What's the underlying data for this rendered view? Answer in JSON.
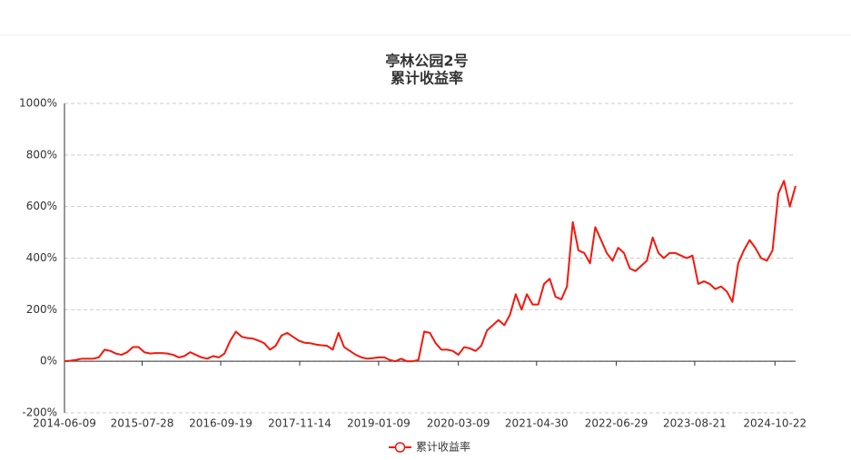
{
  "chart_data": {
    "type": "line",
    "title": "亭林公园2号",
    "subtitle": "累计收益率",
    "x": [
      "2014-06-09",
      "2014-07-09",
      "2014-08-09",
      "2014-09-09",
      "2014-10-09",
      "2014-11-09",
      "2014-12-09",
      "2015-01-09",
      "2015-02-09",
      "2015-03-09",
      "2015-04-09",
      "2015-05-09",
      "2015-06-09",
      "2015-07-09",
      "2015-08-09",
      "2015-09-09",
      "2015-10-09",
      "2015-11-09",
      "2015-12-09",
      "2016-01-09",
      "2016-02-09",
      "2016-03-09",
      "2016-04-09",
      "2016-05-09",
      "2016-06-09",
      "2016-07-09",
      "2016-08-09",
      "2016-09-09",
      "2016-10-09",
      "2016-11-09",
      "2016-12-09",
      "2017-01-09",
      "2017-02-09",
      "2017-03-09",
      "2017-04-09",
      "2017-05-09",
      "2017-06-09",
      "2017-07-09",
      "2017-08-09",
      "2017-09-09",
      "2017-10-09",
      "2017-11-09",
      "2017-12-09",
      "2018-01-09",
      "2018-02-09",
      "2018-03-09",
      "2018-04-09",
      "2018-05-09",
      "2018-06-09",
      "2018-07-09",
      "2018-08-09",
      "2018-09-09",
      "2018-10-09",
      "2018-11-09",
      "2018-12-09",
      "2019-01-09",
      "2019-02-09",
      "2019-03-09",
      "2019-04-09",
      "2019-05-09",
      "2019-06-09",
      "2019-07-09",
      "2019-08-09",
      "2019-09-09",
      "2019-10-09",
      "2019-11-09",
      "2019-12-09",
      "2020-01-09",
      "2020-02-09",
      "2020-03-09",
      "2020-04-09",
      "2020-05-09",
      "2020-06-09",
      "2020-07-09",
      "2020-08-09",
      "2020-09-09",
      "2020-10-09",
      "2020-11-09",
      "2020-12-09",
      "2021-01-09",
      "2021-02-09",
      "2021-03-09",
      "2021-04-09",
      "2021-05-09",
      "2021-06-09",
      "2021-07-09",
      "2021-08-09",
      "2021-09-09",
      "2021-10-09",
      "2021-11-09",
      "2021-12-09",
      "2022-01-09",
      "2022-02-09",
      "2022-03-09",
      "2022-04-09",
      "2022-05-09",
      "2022-06-09",
      "2022-07-09",
      "2022-08-09",
      "2022-09-09",
      "2022-10-09",
      "2022-11-09",
      "2022-12-09",
      "2023-01-09",
      "2023-02-09",
      "2023-03-09",
      "2023-04-09",
      "2023-05-09",
      "2023-06-09",
      "2023-07-09",
      "2023-08-09",
      "2023-09-09",
      "2023-10-09",
      "2023-11-09",
      "2023-12-09",
      "2024-01-09",
      "2024-02-09",
      "2024-03-09",
      "2024-04-09",
      "2024-05-09",
      "2024-06-09",
      "2024-07-09",
      "2024-08-09",
      "2024-09-09",
      "2024-10-09",
      "2024-11-09",
      "2024-12-09",
      "2025-01-09",
      "2025-02-09"
    ],
    "series": [
      {
        "name": "累计收益率",
        "color": "#f5170b",
        "values": [
          0,
          2,
          5,
          10,
          10,
          10,
          15,
          45,
          40,
          30,
          25,
          35,
          55,
          55,
          35,
          30,
          32,
          32,
          30,
          25,
          15,
          20,
          35,
          25,
          15,
          10,
          20,
          15,
          30,
          80,
          115,
          95,
          90,
          88,
          80,
          70,
          45,
          60,
          100,
          110,
          95,
          80,
          72,
          70,
          65,
          62,
          60,
          45,
          110,
          55,
          40,
          25,
          15,
          10,
          12,
          15,
          15,
          5,
          0,
          10,
          0,
          0,
          5,
          115,
          110,
          70,
          45,
          45,
          40,
          25,
          55,
          50,
          40,
          60,
          120,
          140,
          160,
          140,
          180,
          260,
          200,
          260,
          220,
          220,
          300,
          320,
          250,
          240,
          290,
          540,
          430,
          420,
          380,
          520,
          470,
          420,
          390,
          440,
          420,
          360,
          350,
          370,
          390,
          480,
          420,
          400,
          420,
          420,
          410,
          400,
          410,
          300,
          310,
          300,
          280,
          290,
          270,
          230,
          380,
          430,
          470,
          440,
          400,
          390,
          430,
          650,
          700,
          600,
          680
        ]
      }
    ],
    "xlim": [
      "2014-06-09",
      "2025-02-09"
    ],
    "xticks": [
      "2014-06-09",
      "2015-07-28",
      "2016-09-19",
      "2017-11-14",
      "2019-01-09",
      "2020-03-09",
      "2021-04-30",
      "2022-06-29",
      "2023-08-21",
      "2024-10-22"
    ],
    "ylim": [
      -200,
      1000
    ],
    "yticks": [
      {
        "value": -200,
        "label": "-200%"
      },
      {
        "value": 0,
        "label": "0%"
      },
      {
        "value": 200,
        "label": "200%"
      },
      {
        "value": 400,
        "label": "400%"
      },
      {
        "value": 600,
        "label": "600%"
      },
      {
        "value": 800,
        "label": "800%"
      },
      {
        "value": 1000,
        "label": "1000%"
      }
    ],
    "grid": true
  }
}
